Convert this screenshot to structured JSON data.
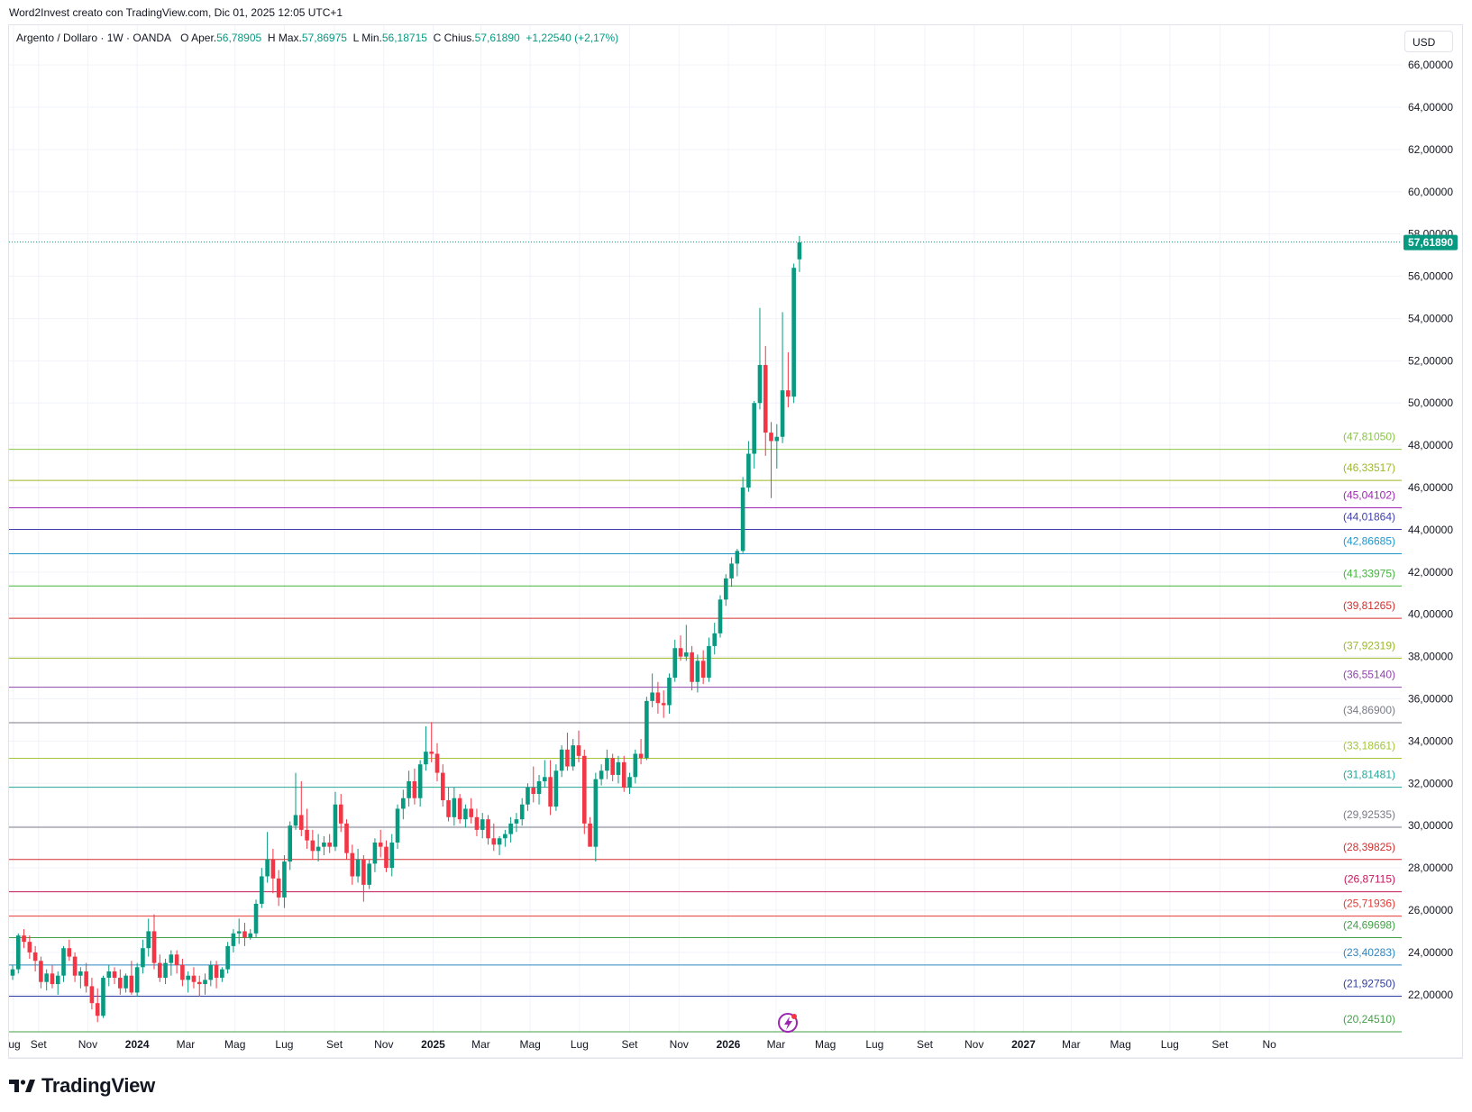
{
  "header": {
    "caption": "Word2Invest creato con TradingView.com, Dic 01, 2025 12:05 UTC+1"
  },
  "legend": {
    "symbol": "Argento / Dollaro · 1W · OANDA",
    "o_label": "O",
    "o_text": "Aper.",
    "open": "56,78905",
    "h_label": "H",
    "h_text": "Max.",
    "high": "57,86975",
    "l_label": "L",
    "l_text": "Min.",
    "low": "56,18715",
    "c_label": "C",
    "c_text": "Chius.",
    "close": "57,61890",
    "change": "+1,22540 (+2,17%)"
  },
  "currency": "USD",
  "brand": "TradingView",
  "colors": {
    "up": "#089981",
    "down": "#f23645",
    "grid": "#f0f3fa",
    "axis_text": "#131722"
  },
  "chart_data": {
    "type": "candlestick",
    "y_range": [
      20.2,
      66.6
    ],
    "y_ticks": [
      {
        "v": 22,
        "label": "22,00000"
      },
      {
        "v": 24,
        "label": "24,00000"
      },
      {
        "v": 26,
        "label": "26,00000"
      },
      {
        "v": 28,
        "label": "28,00000"
      },
      {
        "v": 30,
        "label": "30,00000"
      },
      {
        "v": 32,
        "label": "32,00000"
      },
      {
        "v": 34,
        "label": "34,00000"
      },
      {
        "v": 36,
        "label": "36,00000"
      },
      {
        "v": 38,
        "label": "38,00000"
      },
      {
        "v": 40,
        "label": "40,00000"
      },
      {
        "v": 42,
        "label": "42,00000"
      },
      {
        "v": 44,
        "label": "44,00000"
      },
      {
        "v": 46,
        "label": "46,00000"
      },
      {
        "v": 48,
        "label": "48,00000"
      },
      {
        "v": 50,
        "label": "50,00000"
      },
      {
        "v": 52,
        "label": "52,00000"
      },
      {
        "v": 54,
        "label": "54,00000"
      },
      {
        "v": 56,
        "label": "56,00000"
      },
      {
        "v": 58,
        "label": "58,00000"
      },
      {
        "v": 60,
        "label": "60,00000"
      },
      {
        "v": 62,
        "label": "62,00000"
      },
      {
        "v": 64,
        "label": "64,00000"
      },
      {
        "v": 66,
        "label": "66,00000"
      }
    ],
    "x_labels": [
      {
        "date": "2023-08-01",
        "label": "ug",
        "bold": false
      },
      {
        "date": "2023-09-01",
        "label": "Set",
        "bold": false
      },
      {
        "date": "2023-11-01",
        "label": "Nov",
        "bold": false
      },
      {
        "date": "2024-01-01",
        "label": "2024",
        "bold": true
      },
      {
        "date": "2024-03-01",
        "label": "Mar",
        "bold": false
      },
      {
        "date": "2024-05-01",
        "label": "Mag",
        "bold": false
      },
      {
        "date": "2024-07-01",
        "label": "Lug",
        "bold": false
      },
      {
        "date": "2024-09-01",
        "label": "Set",
        "bold": false
      },
      {
        "date": "2024-11-01",
        "label": "Nov",
        "bold": false
      },
      {
        "date": "2025-01-01",
        "label": "2025",
        "bold": true
      },
      {
        "date": "2025-03-01",
        "label": "Mar",
        "bold": false
      },
      {
        "date": "2025-05-01",
        "label": "Mag",
        "bold": false
      },
      {
        "date": "2025-07-01",
        "label": "Lug",
        "bold": false
      },
      {
        "date": "2025-09-01",
        "label": "Set",
        "bold": false
      },
      {
        "date": "2025-11-01",
        "label": "Nov",
        "bold": false
      },
      {
        "date": "2026-01-01",
        "label": "2026",
        "bold": true
      },
      {
        "date": "2026-03-01",
        "label": "Mar",
        "bold": false
      },
      {
        "date": "2026-05-01",
        "label": "Mag",
        "bold": false
      },
      {
        "date": "2026-07-01",
        "label": "Lug",
        "bold": false
      },
      {
        "date": "2026-09-01",
        "label": "Set",
        "bold": false
      },
      {
        "date": "2026-11-01",
        "label": "Nov",
        "bold": false
      },
      {
        "date": "2027-01-01",
        "label": "2027",
        "bold": true
      },
      {
        "date": "2027-03-01",
        "label": "Mar",
        "bold": false
      },
      {
        "date": "2027-05-01",
        "label": "Mag",
        "bold": false
      },
      {
        "date": "2027-07-01",
        "label": "Lug",
        "bold": false
      },
      {
        "date": "2027-09-01",
        "label": "Set",
        "bold": false
      },
      {
        "date": "2027-11-01",
        "label": "No",
        "bold": false
      }
    ],
    "last_price": {
      "value": 57.6189,
      "label": "57,61890"
    },
    "levels": [
      {
        "value": 47.8105,
        "label": "(47,81050)",
        "color": "#8bc34a"
      },
      {
        "value": 46.33517,
        "label": "(46,33517)",
        "color": "#9cb82c"
      },
      {
        "value": 45.04102,
        "label": "(45,04102)",
        "color": "#9c27b0"
      },
      {
        "value": 44.01864,
        "label": "(44,01864)",
        "color": "#3f3fb0"
      },
      {
        "value": 42.86685,
        "label": "(42,86685)",
        "color": "#2196c8"
      },
      {
        "value": 41.33975,
        "label": "(41,33975)",
        "color": "#43b33b"
      },
      {
        "value": 39.81265,
        "label": "(39,81265)",
        "color": "#d32f2f"
      },
      {
        "value": 37.92319,
        "label": "(37,92319)",
        "color": "#9cb82c"
      },
      {
        "value": 36.5514,
        "label": "(36,55140)",
        "color": "#8e44ad"
      },
      {
        "value": 34.869,
        "label": "(34,86900)",
        "color": "#787b86"
      },
      {
        "value": 33.18661,
        "label": "(33,18661)",
        "color": "#a4c639"
      },
      {
        "value": 31.81481,
        "label": "(31,81481)",
        "color": "#26a69a"
      },
      {
        "value": 29.92535,
        "label": "(29,92535)",
        "color": "#787b86"
      },
      {
        "value": 28.39825,
        "label": "(28,39825)",
        "color": "#d32f2f"
      },
      {
        "value": 26.87115,
        "label": "(26,87115)",
        "color": "#c2185b"
      },
      {
        "value": 25.71936,
        "label": "(25,71936)",
        "color": "#e53935"
      },
      {
        "value": 24.69698,
        "label": "(24,69698)",
        "color": "#43a047"
      },
      {
        "value": 23.40283,
        "label": "(23,40283)",
        "color": "#2e86c1"
      },
      {
        "value": 21.9275,
        "label": "(21,92750)",
        "color": "#303f9f"
      },
      {
        "value": 20.2451,
        "label": "(20,24510)",
        "color": "#43a047"
      }
    ],
    "candle_weeks_start": "2023-07-31",
    "candles": [
      [
        22.9,
        23.4,
        22.7,
        23.2
      ],
      [
        23.2,
        24.9,
        23.0,
        24.8
      ],
      [
        24.8,
        25.1,
        24.2,
        24.5
      ],
      [
        24.5,
        24.8,
        23.7,
        24.0
      ],
      [
        24.0,
        24.3,
        23.1,
        23.6
      ],
      [
        23.6,
        23.8,
        22.3,
        22.6
      ],
      [
        22.6,
        23.2,
        22.2,
        23.0
      ],
      [
        23.0,
        23.4,
        22.3,
        22.5
      ],
      [
        22.5,
        23.1,
        22.0,
        22.9
      ],
      [
        22.9,
        24.3,
        22.6,
        24.2
      ],
      [
        24.2,
        24.6,
        23.6,
        23.8
      ],
      [
        23.8,
        24.0,
        22.6,
        22.9
      ],
      [
        22.9,
        23.3,
        22.3,
        23.1
      ],
      [
        23.1,
        23.5,
        22.1,
        22.4
      ],
      [
        22.4,
        22.8,
        21.3,
        21.6
      ],
      [
        21.6,
        22.3,
        20.7,
        21.0
      ],
      [
        21.0,
        22.9,
        20.9,
        22.8
      ],
      [
        22.8,
        23.4,
        22.4,
        23.1
      ],
      [
        23.1,
        23.3,
        22.5,
        22.8
      ],
      [
        22.8,
        23.2,
        22.0,
        22.3
      ],
      [
        22.3,
        23.0,
        22.1,
        22.9
      ],
      [
        22.9,
        23.6,
        22.0,
        22.1
      ],
      [
        22.1,
        23.5,
        21.9,
        23.3
      ],
      [
        23.3,
        24.6,
        23.0,
        24.2
      ],
      [
        24.2,
        25.6,
        23.8,
        25.0
      ],
      [
        25.0,
        25.8,
        23.2,
        23.5
      ],
      [
        23.5,
        23.9,
        22.6,
        22.8
      ],
      [
        22.8,
        23.7,
        22.5,
        23.5
      ],
      [
        23.5,
        24.1,
        22.9,
        23.9
      ],
      [
        23.9,
        24.1,
        23.0,
        23.4
      ],
      [
        23.4,
        23.7,
        22.4,
        22.7
      ],
      [
        22.7,
        23.1,
        22.1,
        22.9
      ],
      [
        22.9,
        23.3,
        22.3,
        22.6
      ],
      [
        22.6,
        22.9,
        21.9,
        22.5
      ],
      [
        22.5,
        23.0,
        22.0,
        22.7
      ],
      [
        22.7,
        23.6,
        22.4,
        23.4
      ],
      [
        23.4,
        23.6,
        22.3,
        22.8
      ],
      [
        22.8,
        23.3,
        22.6,
        23.2
      ],
      [
        23.2,
        24.5,
        23.0,
        24.3
      ],
      [
        24.3,
        25.1,
        24.0,
        24.9
      ],
      [
        24.9,
        25.6,
        24.4,
        25.0
      ],
      [
        25.0,
        25.4,
        24.3,
        24.7
      ],
      [
        24.7,
        25.1,
        24.6,
        24.9
      ],
      [
        24.9,
        26.5,
        24.7,
        26.3
      ],
      [
        26.3,
        28.0,
        26.1,
        27.6
      ],
      [
        27.6,
        29.7,
        27.3,
        28.4
      ],
      [
        28.4,
        28.9,
        26.8,
        27.5
      ],
      [
        27.5,
        27.9,
        26.2,
        26.6
      ],
      [
        26.6,
        28.6,
        26.1,
        28.3
      ],
      [
        28.3,
        30.2,
        27.9,
        30.0
      ],
      [
        30.0,
        32.5,
        29.8,
        30.5
      ],
      [
        30.5,
        32.1,
        29.5,
        29.8
      ],
      [
        29.8,
        30.8,
        28.9,
        29.3
      ],
      [
        29.3,
        29.8,
        28.4,
        28.8
      ],
      [
        28.8,
        29.6,
        28.3,
        29.0
      ],
      [
        29.0,
        29.5,
        28.6,
        29.2
      ],
      [
        29.2,
        29.6,
        28.7,
        29.0
      ],
      [
        29.0,
        31.6,
        28.8,
        31.0
      ],
      [
        31.0,
        31.5,
        29.7,
        30.1
      ],
      [
        30.1,
        30.3,
        28.4,
        28.7
      ],
      [
        28.7,
        29.1,
        27.2,
        27.6
      ],
      [
        27.6,
        28.9,
        27.3,
        28.4
      ],
      [
        28.4,
        28.6,
        26.4,
        27.2
      ],
      [
        27.2,
        28.4,
        27.0,
        28.2
      ],
      [
        28.2,
        29.4,
        27.8,
        29.2
      ],
      [
        29.2,
        29.8,
        28.5,
        29.0
      ],
      [
        29.0,
        29.3,
        27.8,
        28.0
      ],
      [
        28.0,
        29.6,
        27.6,
        29.2
      ],
      [
        29.2,
        31.0,
        28.9,
        30.8
      ],
      [
        30.8,
        31.7,
        30.3,
        31.3
      ],
      [
        31.3,
        32.6,
        30.9,
        32.1
      ],
      [
        32.1,
        32.7,
        31.0,
        31.3
      ],
      [
        31.3,
        33.1,
        30.9,
        32.9
      ],
      [
        32.9,
        34.7,
        32.6,
        33.5
      ],
      [
        33.5,
        34.9,
        33.0,
        33.4
      ],
      [
        33.4,
        33.9,
        32.1,
        32.5
      ],
      [
        32.5,
        32.9,
        30.9,
        31.2
      ],
      [
        31.2,
        31.8,
        30.2,
        30.4
      ],
      [
        30.4,
        31.8,
        30.0,
        31.3
      ],
      [
        31.3,
        31.5,
        30.1,
        30.3
      ],
      [
        30.3,
        31.0,
        29.9,
        30.8
      ],
      [
        30.8,
        31.3,
        30.1,
        30.4
      ],
      [
        30.4,
        30.8,
        29.5,
        29.8
      ],
      [
        29.8,
        30.6,
        29.4,
        30.3
      ],
      [
        30.3,
        30.5,
        29.1,
        29.4
      ],
      [
        29.4,
        30.1,
        28.8,
        29.1
      ],
      [
        29.1,
        29.5,
        28.6,
        29.4
      ],
      [
        29.4,
        29.8,
        29.0,
        29.6
      ],
      [
        29.6,
        30.4,
        29.2,
        30.1
      ],
      [
        30.1,
        30.6,
        29.7,
        30.3
      ],
      [
        30.3,
        31.3,
        30.0,
        31.0
      ],
      [
        31.0,
        32.0,
        30.7,
        31.8
      ],
      [
        31.8,
        32.8,
        31.1,
        31.5
      ],
      [
        31.5,
        32.4,
        31.0,
        32.1
      ],
      [
        32.1,
        33.1,
        31.8,
        32.3
      ],
      [
        32.3,
        33.1,
        30.5,
        30.9
      ],
      [
        30.9,
        32.9,
        30.7,
        32.6
      ],
      [
        32.6,
        33.8,
        32.3,
        33.6
      ],
      [
        33.6,
        34.4,
        32.6,
        32.8
      ],
      [
        32.8,
        34.1,
        32.6,
        33.8
      ],
      [
        33.8,
        34.5,
        33.0,
        33.3
      ],
      [
        33.3,
        33.6,
        29.6,
        30.1
      ],
      [
        30.1,
        30.4,
        29.2,
        29.0
      ],
      [
        29.0,
        32.5,
        28.3,
        32.2
      ],
      [
        32.2,
        32.9,
        31.9,
        32.6
      ],
      [
        32.6,
        33.6,
        32.2,
        33.2
      ],
      [
        33.2,
        33.4,
        32.1,
        32.4
      ],
      [
        32.4,
        33.3,
        32.0,
        33.0
      ],
      [
        33.0,
        33.3,
        31.6,
        31.8
      ],
      [
        31.8,
        32.5,
        31.5,
        32.3
      ],
      [
        32.3,
        33.6,
        32.0,
        33.4
      ],
      [
        33.4,
        34.1,
        32.9,
        33.2
      ],
      [
        33.2,
        36.1,
        33.1,
        35.9
      ],
      [
        35.9,
        37.2,
        35.6,
        36.3
      ],
      [
        36.3,
        36.8,
        35.3,
        35.8
      ],
      [
        35.8,
        36.4,
        35.1,
        35.7
      ],
      [
        35.7,
        37.2,
        35.3,
        37.0
      ],
      [
        37.0,
        38.8,
        36.8,
        38.4
      ],
      [
        38.4,
        39.0,
        37.8,
        38.0
      ],
      [
        38.0,
        39.5,
        37.8,
        38.2
      ],
      [
        38.2,
        38.5,
        36.4,
        36.8
      ],
      [
        36.8,
        38.1,
        36.3,
        37.8
      ],
      [
        37.8,
        38.3,
        36.7,
        37.0
      ],
      [
        37.0,
        38.9,
        36.8,
        38.5
      ],
      [
        38.5,
        39.6,
        38.1,
        39.1
      ],
      [
        39.1,
        40.9,
        38.9,
        40.7
      ],
      [
        40.7,
        41.9,
        40.4,
        41.7
      ],
      [
        41.7,
        42.7,
        41.3,
        42.4
      ],
      [
        42.4,
        43.1,
        41.8,
        43.0
      ],
      [
        43.0,
        46.5,
        42.9,
        46.0
      ],
      [
        46.0,
        48.2,
        45.8,
        47.6
      ],
      [
        47.6,
        50.1,
        46.9,
        50.0
      ],
      [
        50.0,
        54.5,
        49.7,
        51.8
      ],
      [
        51.8,
        52.7,
        47.5,
        48.6
      ],
      [
        48.6,
        49.1,
        45.5,
        48.2
      ],
      [
        48.2,
        49.0,
        46.9,
        48.4
      ],
      [
        48.4,
        54.3,
        48.1,
        50.6
      ],
      [
        50.6,
        52.4,
        49.8,
        50.3
      ],
      [
        50.3,
        56.6,
        50.0,
        56.4
      ],
      [
        56.8,
        57.9,
        56.2,
        57.6
      ]
    ]
  }
}
